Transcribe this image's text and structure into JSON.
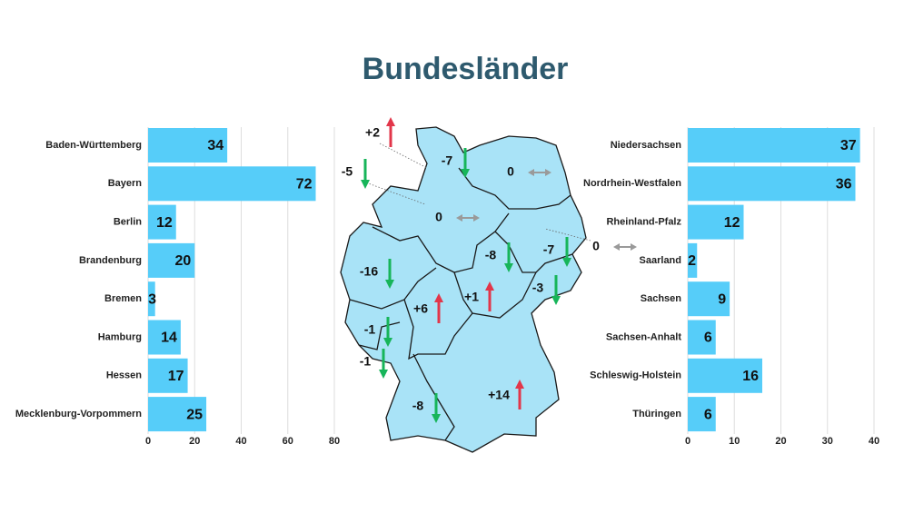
{
  "title": "Bundesländer",
  "chart_data": [
    {
      "type": "bar",
      "orientation": "horizontal",
      "color": "#56cdf9",
      "categories": [
        "Baden-Württemberg",
        "Bayern",
        "Berlin",
        "Brandenburg",
        "Bremen",
        "Hamburg",
        "Hessen",
        "Mecklenburg-Vorpommern"
      ],
      "values": [
        34,
        72,
        12,
        20,
        3,
        14,
        17,
        25
      ],
      "xlim": [
        0,
        80
      ],
      "xticks": [
        0,
        20,
        40,
        60,
        80
      ],
      "grid": true
    },
    {
      "type": "bar",
      "orientation": "horizontal",
      "color": "#56cdf9",
      "categories": [
        "Niedersachsen",
        "Nordrhein-Westfalen",
        "Rheinland-Pfalz",
        "Saarland",
        "Sachsen",
        "Sachsen-Anhalt",
        "Schleswig-Holstein",
        "Thüringen"
      ],
      "values": [
        37,
        36,
        12,
        2,
        9,
        6,
        16,
        6
      ],
      "xlim": [
        0,
        40
      ],
      "xticks": [
        0,
        10,
        20,
        30,
        40
      ],
      "grid": true
    }
  ],
  "map": {
    "changes": [
      {
        "value": 2,
        "label": "+2"
      },
      -5,
      -7,
      0,
      0,
      0,
      -8,
      -7,
      -16,
      -3,
      {
        "value": 6,
        "label": "+6"
      },
      {
        "value": 1,
        "label": "+1"
      },
      -1,
      -1,
      -8,
      {
        "value": 14,
        "label": "+14"
      }
    ]
  }
}
